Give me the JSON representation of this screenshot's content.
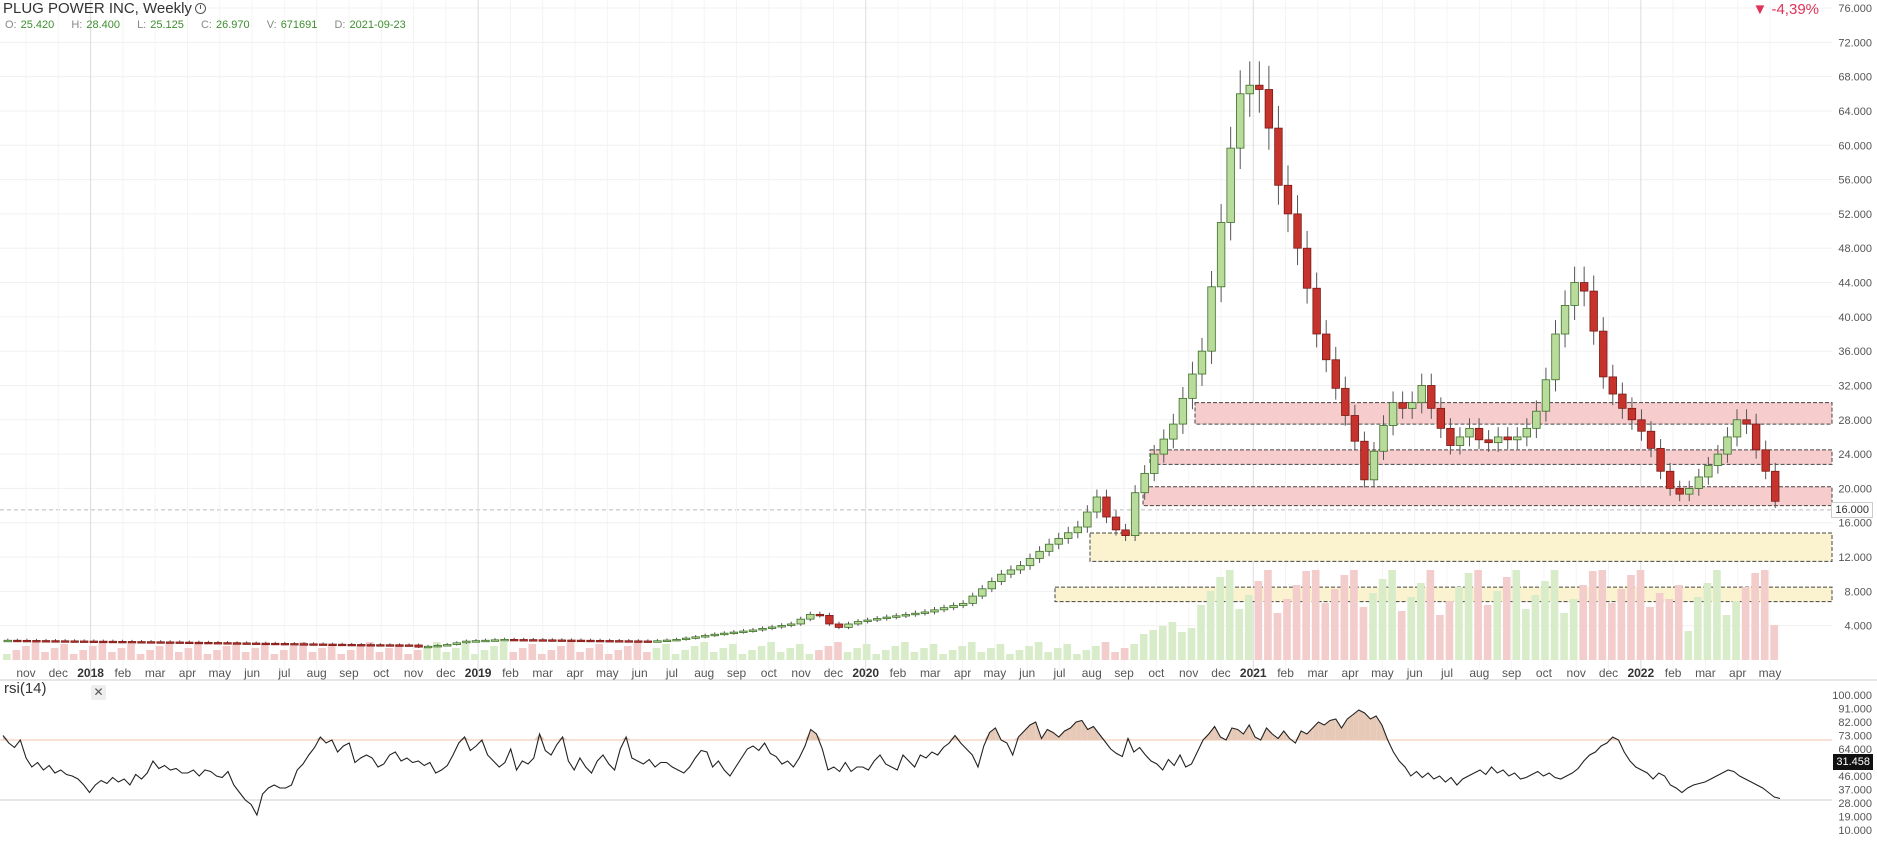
{
  "header": {
    "title": "PLUG POWER INC, Weekly",
    "change": "-4,39%",
    "ohlc": [
      {
        "label": "O:",
        "value": "25.420"
      },
      {
        "label": "H:",
        "value": "28.400"
      },
      {
        "label": "L:",
        "value": "25.125"
      },
      {
        "label": "C:",
        "value": "26.970"
      },
      {
        "label": "V:",
        "value": "671691"
      },
      {
        "label": "D:",
        "value": "2021-09-23"
      }
    ]
  },
  "colors": {
    "up": "#b9dc9c",
    "up_border": "#3b6e27",
    "down": "#c6322c",
    "down_border": "#7a1c18",
    "zone_red": "#f6cccc",
    "zone_yellow": "#fbf3cf",
    "rsi_fill": "#e7c9b8",
    "ob_line": "#f1c5ad"
  },
  "chart_data": [
    {
      "type": "candlestick",
      "title": "PLUG POWER INC, Weekly",
      "y_ticks": [
        "4.000",
        "8.000",
        "12.000",
        "16.000",
        "20.000",
        "24.000",
        "28.000",
        "32.000",
        "36.000",
        "40.000",
        "44.000",
        "48.000",
        "52.000",
        "56.000",
        "60.000",
        "64.000",
        "68.000",
        "72.000",
        "76.000"
      ],
      "ylim": [
        0,
        76
      ],
      "x_ticks": [
        "nov",
        "dec",
        "2018",
        "feb",
        "mar",
        "apr",
        "may",
        "jun",
        "jul",
        "aug",
        "sep",
        "oct",
        "nov",
        "dec",
        "2019",
        "feb",
        "mar",
        "apr",
        "may",
        "jun",
        "jul",
        "aug",
        "sep",
        "oct",
        "nov",
        "dec",
        "2020",
        "feb",
        "mar",
        "apr",
        "may",
        "jun",
        "jul",
        "aug",
        "sep",
        "oct",
        "nov",
        "dec",
        "2021",
        "feb",
        "mar",
        "apr",
        "may",
        "jun",
        "jul",
        "aug",
        "sep",
        "oct",
        "nov",
        "dec",
        "2022",
        "feb",
        "mar",
        "apr",
        "may"
      ],
      "last_price": "16.000",
      "close_path": [
        [
          0,
          2.3
        ],
        [
          34,
          2.1
        ],
        [
          60,
          1.9
        ],
        [
          73,
          1.8
        ],
        [
          84,
          1.75
        ],
        [
          86,
          1.5
        ],
        [
          92,
          1.8
        ],
        [
          96,
          2.2
        ],
        [
          104,
          2.4
        ],
        [
          120,
          2.3
        ],
        [
          135,
          2.2
        ],
        [
          140,
          2.4
        ],
        [
          148,
          3.0
        ],
        [
          156,
          3.5
        ],
        [
          164,
          4.2
        ],
        [
          169,
          5.6
        ],
        [
          171,
          4.8
        ],
        [
          173,
          3.6
        ],
        [
          177,
          4.4
        ],
        [
          184,
          5.0
        ],
        [
          192,
          5.6
        ],
        [
          200,
          6.6
        ],
        [
          208,
          10.0
        ],
        [
          212,
          11.0
        ],
        [
          218,
          13.5
        ],
        [
          224,
          15.5
        ],
        [
          228,
          19.0
        ],
        [
          231,
          15.5
        ],
        [
          234,
          14.5
        ],
        [
          236,
          19.5
        ],
        [
          240,
          24.0
        ],
        [
          244,
          27.5
        ],
        [
          247,
          32.0
        ],
        [
          250,
          36.0
        ],
        [
          254,
          51.0
        ],
        [
          257,
          64.0
        ],
        [
          259,
          68.0
        ],
        [
          261,
          66.0
        ],
        [
          263,
          67.0
        ],
        [
          265,
          57.0
        ],
        [
          268,
          52.0
        ],
        [
          271,
          46.0
        ],
        [
          274,
          38.0
        ],
        [
          276,
          35.0
        ],
        [
          279,
          30.0
        ],
        [
          282,
          25.5
        ],
        [
          284,
          21.0
        ],
        [
          287,
          26.0
        ],
        [
          290,
          30.0
        ],
        [
          293,
          29.0
        ],
        [
          296,
          32.0
        ],
        [
          299,
          28.0
        ],
        [
          302,
          25.0
        ],
        [
          306,
          27.0
        ],
        [
          309,
          25.0
        ],
        [
          312,
          26.0
        ],
        [
          315,
          25.5
        ],
        [
          318,
          27.0
        ],
        [
          321,
          30.0
        ],
        [
          324,
          38.0
        ],
        [
          327,
          43.0
        ],
        [
          329,
          45.0
        ],
        [
          331,
          41.0
        ],
        [
          334,
          33.0
        ],
        [
          337,
          30.0
        ],
        [
          340,
          28.0
        ],
        [
          343,
          26.0
        ],
        [
          346,
          22.0
        ],
        [
          349,
          19.0
        ],
        [
          352,
          20.0
        ],
        [
          355,
          22.0
        ],
        [
          358,
          24.0
        ],
        [
          361,
          27.0
        ],
        [
          363,
          29.0
        ],
        [
          365,
          26.0
        ],
        [
          367,
          23.0
        ],
        [
          369,
          21.0
        ],
        [
          371,
          16.0
        ]
      ],
      "zones": [
        {
          "color": "red",
          "low": 27.5,
          "high": 30.0
        },
        {
          "color": "red",
          "low": 22.8,
          "high": 24.5
        },
        {
          "color": "red",
          "low": 18.0,
          "high": 20.2
        },
        {
          "color": "yellow",
          "low": 11.5,
          "high": 14.8
        },
        {
          "color": "yellow",
          "low": 6.8,
          "high": 8.5
        }
      ]
    },
    {
      "type": "line",
      "title": "rsi(14)",
      "y_ticks": [
        "10.000",
        "19.000",
        "28.000",
        "37.000",
        "46.000",
        "55.000",
        "64.000",
        "73.000",
        "82.000",
        "91.000",
        "100.000"
      ],
      "ylim": [
        10,
        100
      ],
      "overbought": 70,
      "oversold": 30,
      "last_value": "31.458",
      "values": [
        73,
        68,
        65,
        70,
        58,
        52,
        55,
        50,
        53,
        48,
        50,
        47,
        46,
        44,
        40,
        35,
        40,
        43,
        41,
        45,
        42,
        44,
        40,
        47,
        44,
        48,
        56,
        51,
        53,
        50,
        51,
        48,
        48,
        50,
        46,
        50,
        49,
        46,
        45,
        49,
        40,
        35,
        30,
        27,
        20,
        34,
        38,
        40,
        38,
        38,
        40,
        50,
        54,
        60,
        65,
        72,
        68,
        70,
        62,
        66,
        68,
        55,
        58,
        60,
        58,
        52,
        54,
        60,
        62,
        56,
        58,
        55,
        56,
        53,
        55,
        48,
        50,
        53,
        60,
        68,
        72,
        63,
        66,
        70,
        60,
        56,
        52,
        55,
        64,
        50,
        56,
        54,
        58,
        74,
        63,
        60,
        67,
        72,
        56,
        50,
        58,
        52,
        48,
        56,
        60,
        54,
        50,
        64,
        72,
        58,
        56,
        54,
        57,
        52,
        55,
        55,
        52,
        50,
        48,
        52,
        58,
        63,
        62,
        52,
        56,
        50,
        46,
        52,
        58,
        64,
        66,
        63,
        68,
        61,
        59,
        54,
        56,
        52,
        58,
        66,
        77,
        74,
        64,
        50,
        52,
        49,
        55,
        49,
        52,
        52,
        50,
        56,
        60,
        54,
        52,
        50,
        60,
        56,
        52,
        60,
        58,
        62,
        60,
        65,
        68,
        73,
        68,
        64,
        60,
        52,
        66,
        75,
        78,
        70,
        68,
        60,
        72,
        76,
        80,
        82,
        71,
        77,
        75,
        72,
        76,
        78,
        82,
        83,
        77,
        79,
        74,
        69,
        64,
        61,
        59,
        71,
        62,
        65,
        60,
        56,
        54,
        50,
        57,
        53,
        60,
        52,
        54,
        62,
        70,
        74,
        79,
        72,
        70,
        78,
        77,
        74,
        80,
        72,
        70,
        78,
        74,
        71,
        76,
        71,
        68,
        76,
        74,
        78,
        82,
        80,
        83,
        84,
        78,
        84,
        87,
        90,
        88,
        84,
        86,
        80,
        70,
        62,
        56,
        52,
        46,
        49,
        45,
        48,
        44,
        46,
        42,
        45,
        40,
        44,
        46,
        48,
        50,
        47,
        52,
        48,
        50,
        46,
        48,
        44,
        45,
        47,
        49,
        46,
        48,
        45,
        44,
        46,
        48,
        51,
        56,
        60,
        62,
        66,
        68,
        72,
        70,
        62,
        56,
        52,
        50,
        48,
        44,
        48,
        46,
        40,
        38,
        35,
        38,
        40,
        41,
        42,
        44,
        46,
        48,
        50,
        49,
        46,
        44,
        42,
        40,
        38,
        35,
        32,
        31
      ]
    }
  ]
}
